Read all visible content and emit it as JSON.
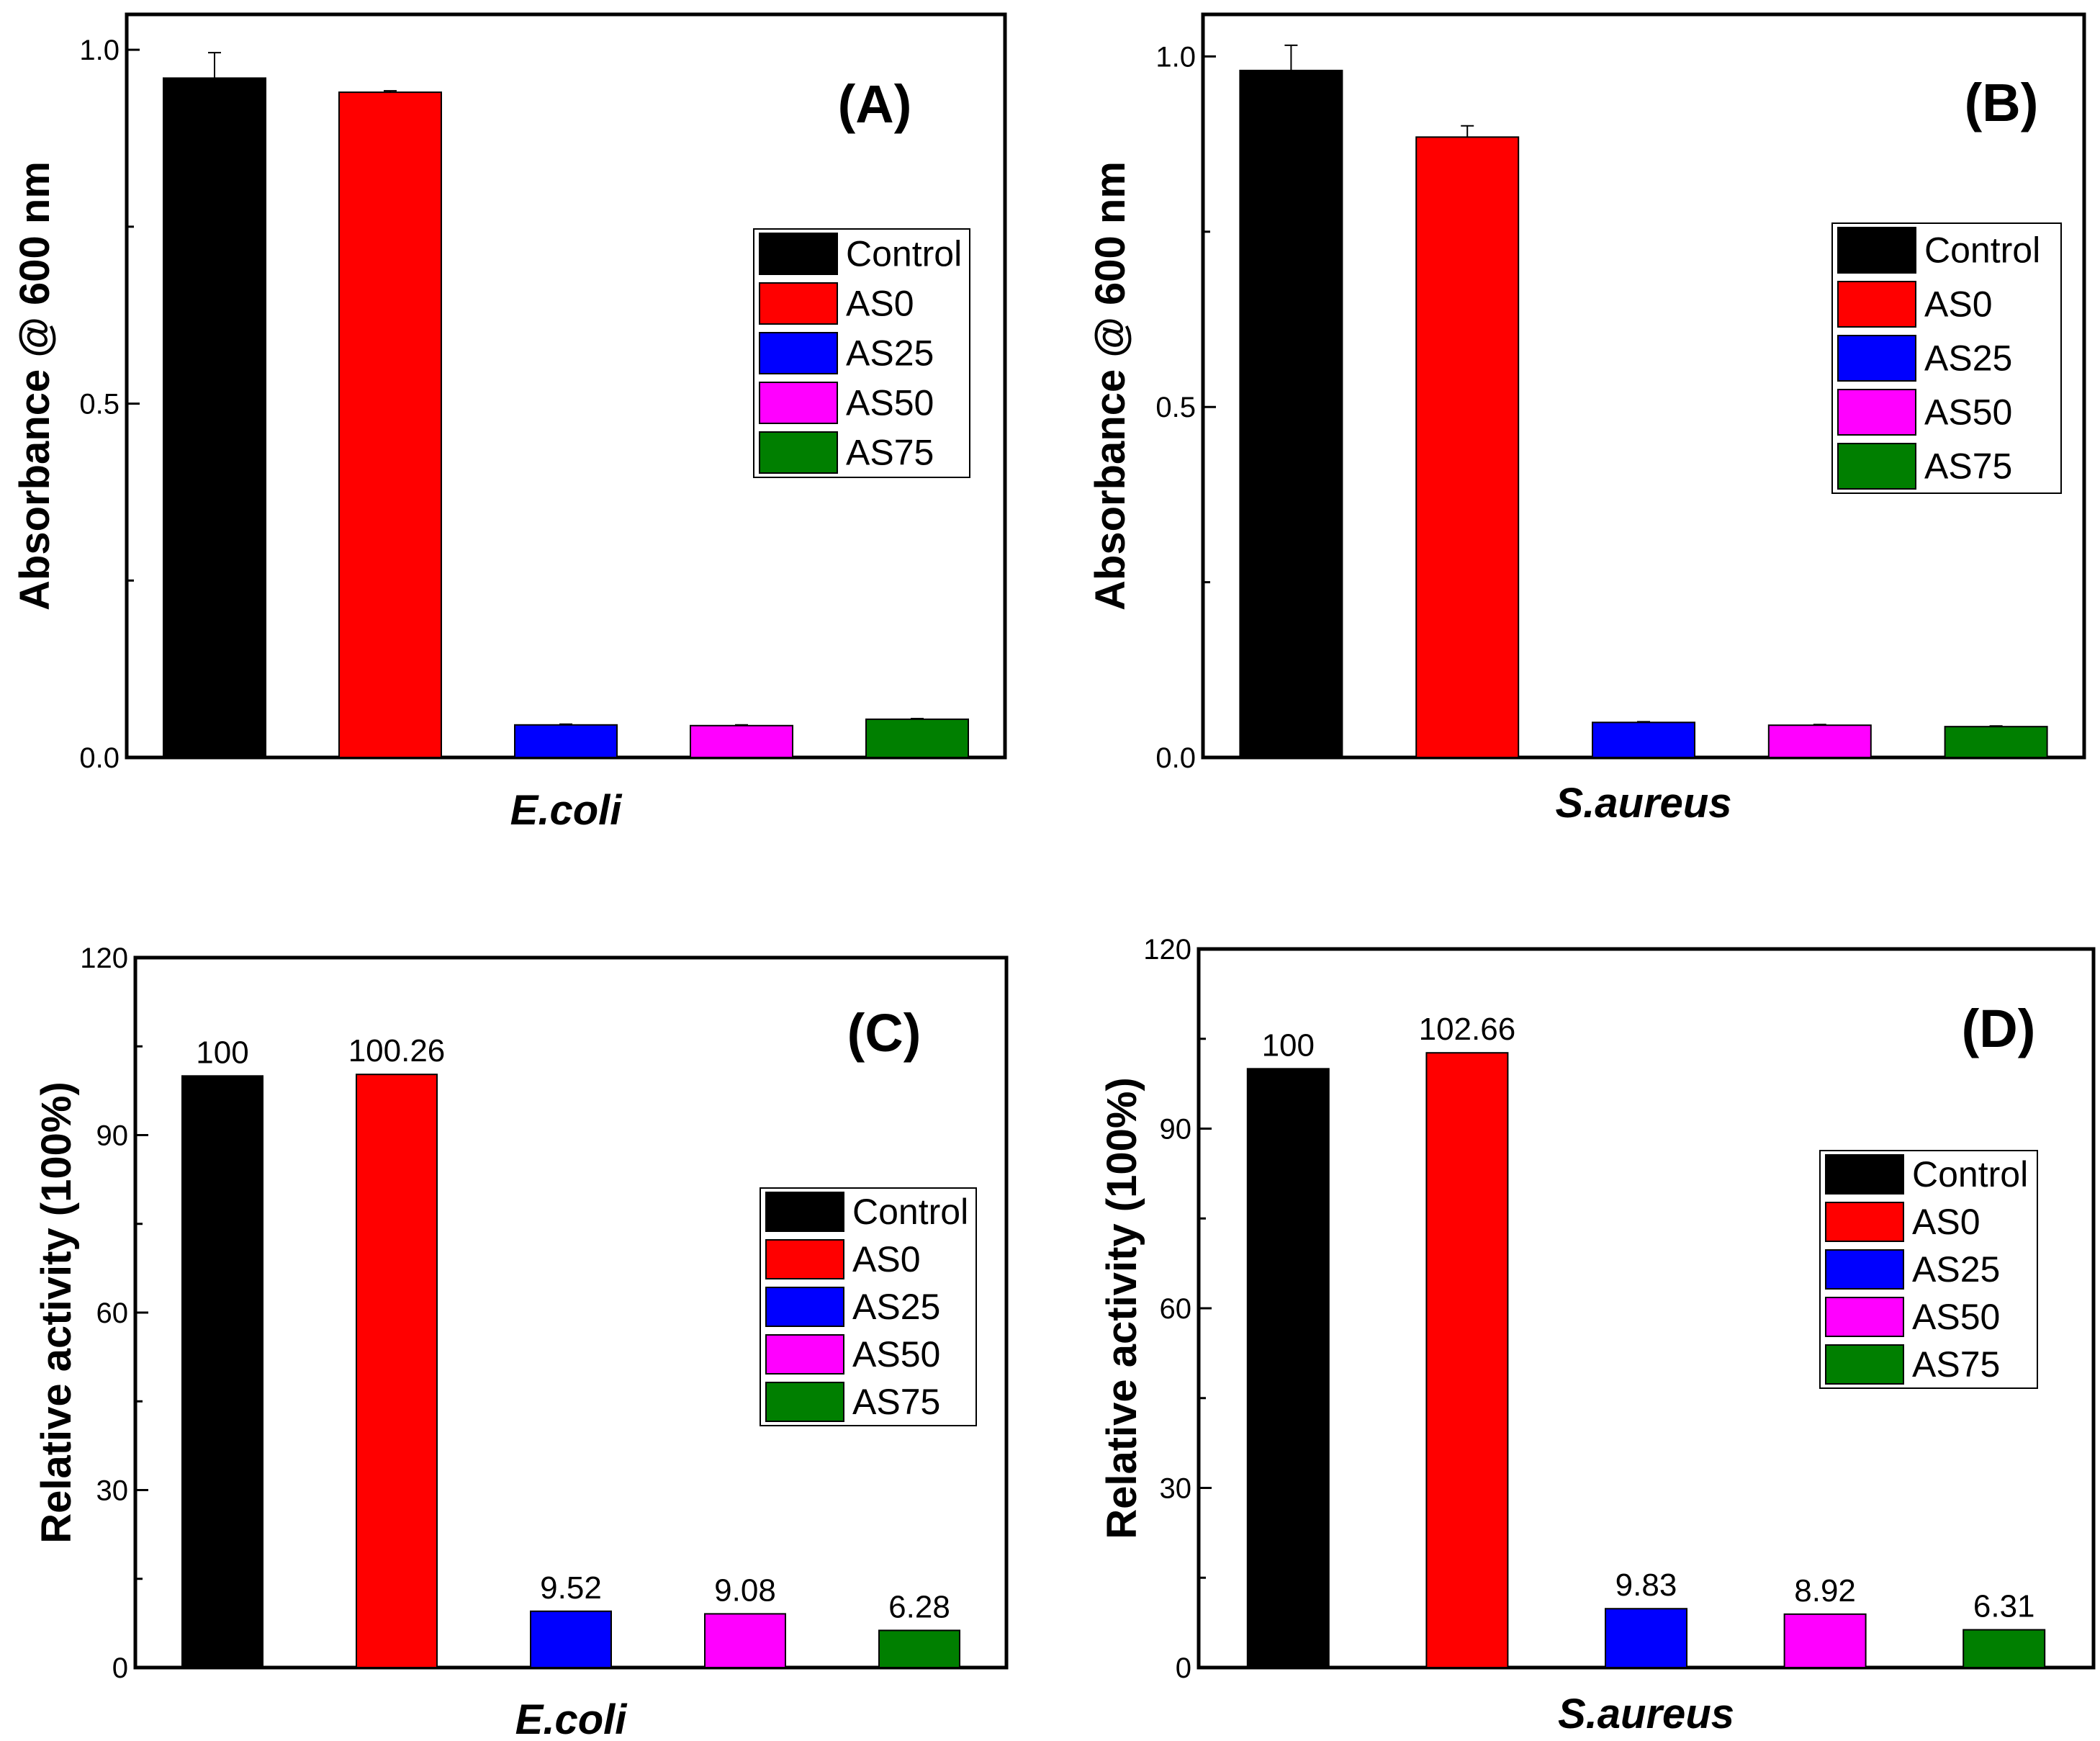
{
  "colors": {
    "Control": "#000000",
    "AS0": "#ff0000",
    "AS25": "#0000ff",
    "AS50": "#ff00ff",
    "AS75": "#007f00"
  },
  "chart_data": [
    {
      "type": "bar",
      "panel": "(A)",
      "xlabel": "E.coli",
      "ylabel": "Absorbance @ 600 nm",
      "ylim": [
        0,
        1.05
      ],
      "yticks": [
        "0.0",
        "0.5",
        "1.0"
      ],
      "minor_ticks": [
        0.25,
        0.75
      ],
      "categories": [
        "Control",
        "AS0",
        "AS25",
        "AS50",
        "AS75"
      ],
      "values": [
        0.96,
        0.94,
        0.046,
        0.045,
        0.054
      ],
      "errors": [
        0.036,
        0.002,
        0.001,
        0.001,
        0.001
      ],
      "data_labels": [],
      "legend": [
        "Control",
        "AS0",
        "AS25",
        "AS50",
        "AS75"
      ],
      "legend_position": "right"
    },
    {
      "type": "bar",
      "panel": "(B)",
      "xlabel": "S.aureus",
      "ylabel": "Absorbance @ 600 nm",
      "ylim": [
        0,
        1.06
      ],
      "yticks": [
        "0.0",
        "0.5",
        "1.0"
      ],
      "minor_ticks": [
        0.25,
        0.75
      ],
      "categories": [
        "Control",
        "AS0",
        "AS25",
        "AS50",
        "AS75"
      ],
      "values": [
        0.98,
        0.885,
        0.05,
        0.046,
        0.044
      ],
      "errors": [
        0.036,
        0.016,
        0.001,
        0.001,
        0.001
      ],
      "data_labels": [],
      "legend": [
        "Control",
        "AS0",
        "AS25",
        "AS50",
        "AS75"
      ],
      "legend_position": "right"
    },
    {
      "type": "bar",
      "panel": "(C)",
      "xlabel": "E.coli",
      "ylabel": "Relative activity (100%)",
      "ylim": [
        0,
        120
      ],
      "yticks": [
        "0",
        "30",
        "60",
        "90",
        "120"
      ],
      "minor_ticks": [
        15,
        45,
        75,
        105
      ],
      "categories": [
        "Control",
        "AS0",
        "AS25",
        "AS50",
        "AS75"
      ],
      "values": [
        100,
        100.26,
        9.52,
        9.08,
        6.28
      ],
      "errors": [],
      "data_labels": [
        "100",
        "100.26",
        "9.52",
        "9.08",
        "6.28"
      ],
      "legend": [
        "Control",
        "AS0",
        "AS25",
        "AS50",
        "AS75"
      ],
      "legend_position": "right"
    },
    {
      "type": "bar",
      "panel": "(D)",
      "xlabel": "S.aureus",
      "ylabel": "Relative activity (100%)",
      "ylim": [
        0,
        120
      ],
      "yticks": [
        "0",
        "30",
        "60",
        "90",
        "120"
      ],
      "minor_ticks": [
        15,
        45,
        75,
        105
      ],
      "categories": [
        "Control",
        "AS0",
        "AS25",
        "AS50",
        "AS75"
      ],
      "values": [
        100,
        102.66,
        9.83,
        8.92,
        6.31
      ],
      "errors": [],
      "data_labels": [
        "100",
        "102.66",
        "9.83",
        "8.92",
        "6.31"
      ],
      "legend": [
        "Control",
        "AS0",
        "AS25",
        "AS50",
        "AS75"
      ],
      "legend_position": "right"
    }
  ]
}
